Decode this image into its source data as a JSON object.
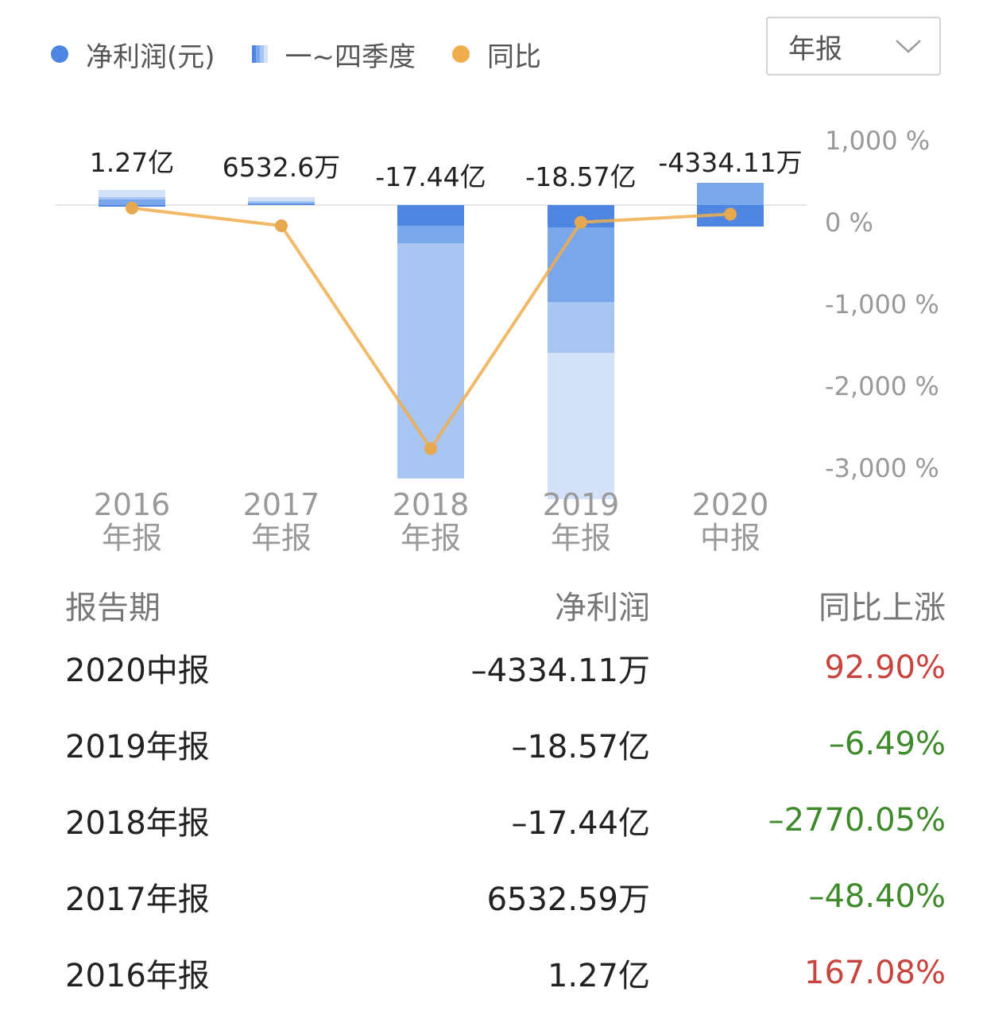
{
  "legend": {
    "profit_label": "净利润(元)",
    "quarter_label": "一~四季度",
    "yoy_label": "同比",
    "profit_color": "#4e86e2",
    "yoy_color": "#f0ad4e",
    "quarter_colors": [
      "#4e86e2",
      "#7aa6ec",
      "#a9c6f3",
      "#d3e2f8"
    ]
  },
  "period_select": {
    "value": "年报",
    "icon": "chevron-down-icon"
  },
  "chart_data": {
    "type": "bar",
    "categories": [
      "2016\n年报",
      "2017\n年报",
      "2018\n年报",
      "2019\n年报",
      "2020\n中报"
    ],
    "category_lines": [
      [
        "2016",
        "年报"
      ],
      [
        "2017",
        "年报"
      ],
      [
        "2018",
        "年报"
      ],
      [
        "2019",
        "年报"
      ],
      [
        "2020",
        "中报"
      ]
    ],
    "data_labels": [
      "1.27亿",
      "6532.6万",
      "-17.44亿",
      "-18.57亿",
      "-4334.11万"
    ],
    "series": [
      {
        "name": "一~四季度",
        "type": "stacked-bar",
        "stacks": [
          [
            -0.02,
            0.07,
            0.03,
            0.09
          ],
          [
            0.01,
            0.02,
            0.02,
            0.05
          ],
          [
            -0.26,
            -0.22,
            -2.96,
            0
          ],
          [
            -0.28,
            -0.94,
            -0.64,
            -1.84
          ],
          [
            -0.27,
            0.28,
            0,
            0
          ]
        ]
      },
      {
        "name": "同比",
        "type": "line",
        "values": [
          167.08,
          -48.4,
          -2770.05,
          -6.49,
          92.9
        ]
      }
    ],
    "y_right": {
      "ticks": [
        1000,
        0,
        -1000,
        -2000,
        -3000
      ],
      "tick_labels": [
        "1,000 %",
        "0 %",
        "-1,000 %",
        "-2,000 %",
        "-3,000 %"
      ],
      "range": [
        -3000,
        1000
      ]
    }
  },
  "table": {
    "headers": [
      "报告期",
      "净利润",
      "同比上涨"
    ],
    "rows": [
      {
        "period": "2020中报",
        "profit": "–4334.11万",
        "yoy": "92.90%",
        "dir": "up"
      },
      {
        "period": "2019年报",
        "profit": "–18.57亿",
        "yoy": "–6.49%",
        "dir": "down"
      },
      {
        "period": "2018年报",
        "profit": "–17.44亿",
        "yoy": "–2770.05%",
        "dir": "down"
      },
      {
        "period": "2017年报",
        "profit": "6532.59万",
        "yoy": "–48.40%",
        "dir": "down"
      },
      {
        "period": "2016年报",
        "profit": "1.27亿",
        "yoy": "167.08%",
        "dir": "up"
      }
    ]
  }
}
